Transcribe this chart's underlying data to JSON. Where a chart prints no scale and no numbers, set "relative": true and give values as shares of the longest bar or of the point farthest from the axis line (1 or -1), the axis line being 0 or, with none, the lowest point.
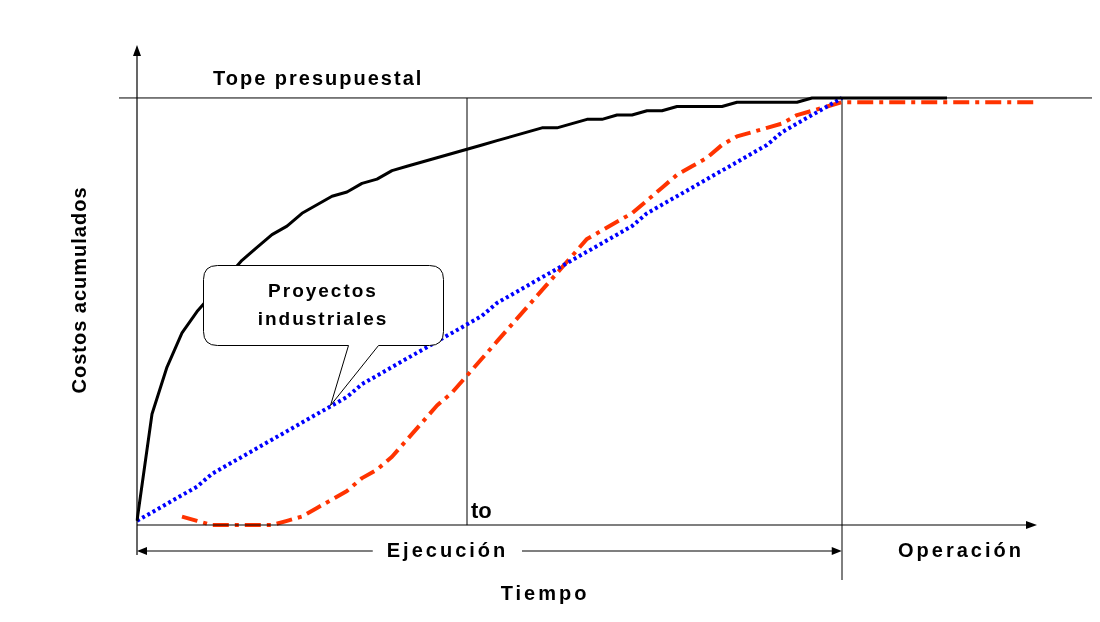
{
  "chart_data": {
    "type": "line",
    "relative": true,
    "xlabel": "Tiempo",
    "ylabel": "Costos acumulados",
    "tick_labels": false,
    "legend": false,
    "marker": "none",
    "categories": [
      null,
      null,
      null,
      null,
      null,
      null,
      null,
      null,
      null,
      null,
      null,
      null,
      null,
      null,
      null,
      null,
      null,
      null,
      null,
      null,
      null,
      null,
      null,
      null,
      null,
      null,
      null,
      null,
      null,
      null,
      null,
      null,
      null,
      null,
      null,
      null,
      null,
      null,
      null,
      null,
      null,
      null,
      null,
      null,
      null,
      null,
      null,
      null,
      null,
      null,
      null,
      null,
      null,
      null,
      null,
      null,
      null,
      null,
      null,
      null,
      null
    ],
    "series": [
      {
        "color": "#000000",
        "line_style": "solid",
        "values": [
          0.01,
          0.26,
          0.37,
          0.45,
          0.5,
          null,
          null,
          0.62,
          0.65,
          0.68,
          0.7,
          0.73,
          0.75,
          0.77,
          0.78,
          0.8,
          0.81,
          0.83,
          0.84,
          0.85,
          0.86,
          0.87,
          0.88,
          0.89,
          0.9,
          0.91,
          0.92,
          0.93,
          0.93,
          0.94,
          0.95,
          0.95,
          0.96,
          0.96,
          0.97,
          0.97,
          0.98,
          0.98,
          0.98,
          0.98,
          0.99,
          0.99,
          0.99,
          0.99,
          0.99,
          1,
          1,
          1,
          1,
          1,
          1,
          1,
          1,
          1,
          1,
          null,
          null,
          null,
          null,
          null,
          null
        ]
      },
      {
        "color": "#0000ff",
        "line_style": "dotted",
        "values": [
          0.01,
          0.03,
          0.05,
          0.07,
          0.09,
          0.12,
          0.14,
          0.16,
          0.18,
          0.2,
          0.22,
          0.24,
          0.26,
          0.28,
          0.3,
          0.33,
          0.35,
          0.37,
          0.39,
          0.41,
          null,
          0.45,
          0.47,
          0.49,
          0.52,
          0.54,
          0.56,
          0.58,
          0.6,
          0.62,
          0.64,
          0.66,
          0.68,
          0.7,
          0.73,
          0.75,
          0.77,
          0.79,
          0.81,
          0.83,
          0.85,
          0.87,
          0.89,
          0.92,
          0.94,
          0.96,
          0.98,
          1,
          null,
          null,
          null,
          null,
          null,
          null,
          null,
          null,
          null,
          null,
          null,
          null,
          null
        ]
      },
      {
        "color": "#ff3300",
        "line_style": "dashed",
        "values": [
          null,
          null,
          null,
          0.02,
          0.01,
          0,
          0,
          0,
          0,
          0,
          0.01,
          0.02,
          0.04,
          0.06,
          0.08,
          0.11,
          0.13,
          0.16,
          0.2,
          0.24,
          0.28,
          0.31,
          0.35,
          0.39,
          0.43,
          0.47,
          0.51,
          0.55,
          0.59,
          0.63,
          0.67,
          0.69,
          0.71,
          0.73,
          0.76,
          0.79,
          0.82,
          0.84,
          0.86,
          0.89,
          0.91,
          0.92,
          0.93,
          0.94,
          0.96,
          0.97,
          0.98,
          0.99,
          0.99,
          0.99,
          0.99,
          0.99,
          0.99,
          0.99,
          0.99,
          0.99,
          0.99,
          0.99,
          0.99,
          0.99,
          0.99
        ]
      }
    ],
    "annotations": [
      "Ejecución",
      "Operación",
      "Proyectos industriales",
      "to",
      "Tope presupuestal"
    ]
  }
}
